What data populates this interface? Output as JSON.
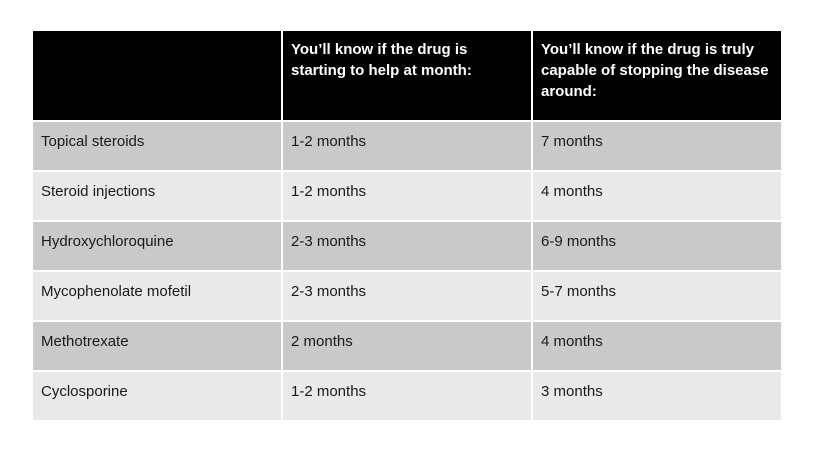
{
  "page": {
    "background": "#ffffff"
  },
  "table": {
    "colors": {
      "page_bg": "#ffffff",
      "header_bg": "#000000",
      "header_text": "#ffffff",
      "row_odd_bg": "#c9c9c9",
      "row_even_bg": "#e9e9e9",
      "body_text": "#1a1a1a",
      "divider": "#ffffff"
    },
    "columns": [
      {
        "header": ""
      },
      {
        "header": "You’ll know if the drug is starting to help at month:"
      },
      {
        "header": "You’ll know if the drug is truly capable of stopping the disease around:"
      }
    ],
    "rows": [
      {
        "drug": "Topical steroids",
        "start_helping": "1-2 months",
        "stop_disease": "7 months"
      },
      {
        "drug": "Steroid injections",
        "start_helping": "1-2 months",
        "stop_disease": "4 months"
      },
      {
        "drug": "Hydroxychloroquine",
        "start_helping": "2-3 months",
        "stop_disease": "6-9 months"
      },
      {
        "drug": "Mycophenolate mofetil",
        "start_helping": "2-3 months",
        "stop_disease": "5-7 months"
      },
      {
        "drug": "Methotrexate",
        "start_helping": "2 months",
        "stop_disease": "4 months"
      },
      {
        "drug": "Cyclosporine",
        "start_helping": "1-2 months",
        "stop_disease": "3 months"
      }
    ]
  }
}
